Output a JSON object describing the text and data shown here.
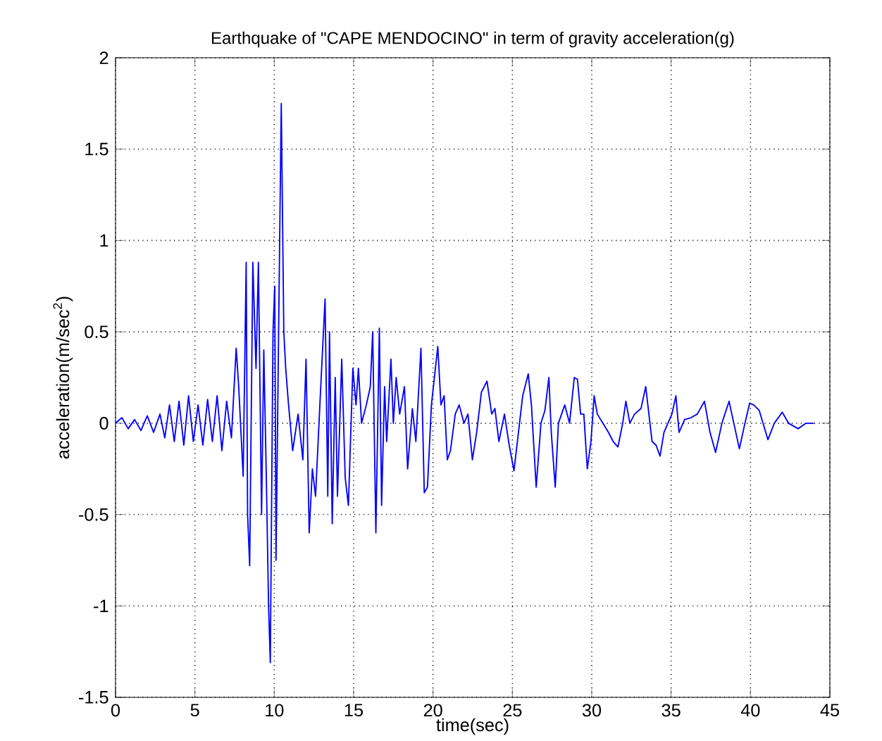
{
  "chart_data": {
    "type": "line",
    "title": "Earthquake of \"CAPE MENDOCINO\" in term of gravity acceleration(g)",
    "xlabel": "time(sec)",
    "ylabel": "acceleration(m/sec$^{2}$)",
    "grid": true,
    "line_style": "solid",
    "xlim": [
      0,
      45
    ],
    "ylim": [
      -1.5,
      2
    ],
    "xticks": [
      0,
      5,
      10,
      15,
      20,
      25,
      30,
      35,
      40,
      45
    ],
    "yticks": [
      -1.5,
      -1,
      -0.5,
      0,
      0.5,
      1,
      1.5,
      2
    ],
    "series": [
      {
        "color": "#0000ff",
        "x": [
          0,
          0.4,
          0.8,
          1.2,
          1.6,
          2.0,
          2.4,
          2.8,
          3.1,
          3.4,
          3.7,
          4.0,
          4.3,
          4.6,
          4.9,
          5.2,
          5.5,
          5.8,
          6.1,
          6.4,
          6.7,
          7.0,
          7.3,
          7.6,
          7.76,
          8.04,
          8.23,
          8.32,
          8.45,
          8.65,
          8.85,
          9.0,
          9.2,
          9.34,
          9.5,
          9.64,
          9.75,
          9.92,
          10.03,
          10.11,
          10.28,
          10.44,
          10.6,
          10.72,
          10.9,
          11.16,
          11.5,
          11.8,
          12.0,
          12.2,
          12.4,
          12.6,
          12.9,
          13.2,
          13.37,
          13.48,
          13.65,
          13.84,
          13.98,
          14.25,
          14.47,
          14.67,
          14.95,
          15.15,
          15.3,
          15.5,
          15.8,
          16.05,
          16.2,
          16.4,
          16.62,
          16.76,
          16.95,
          17.08,
          17.35,
          17.5,
          17.68,
          17.9,
          18.2,
          18.4,
          18.7,
          18.92,
          19.24,
          19.45,
          19.65,
          19.9,
          20.3,
          20.5,
          20.7,
          20.9,
          21.1,
          21.4,
          21.65,
          21.95,
          22.2,
          22.48,
          22.75,
          23.05,
          23.4,
          23.7,
          23.9,
          24.15,
          24.5,
          24.8,
          25.1,
          25.45,
          25.65,
          26.0,
          26.2,
          26.5,
          26.8,
          27.05,
          27.3,
          27.45,
          27.7,
          27.9,
          28.3,
          28.6,
          28.9,
          29.1,
          29.3,
          29.5,
          29.72,
          29.95,
          30.15,
          30.35,
          30.7,
          31.05,
          31.35,
          31.65,
          31.95,
          32.15,
          32.4,
          32.7,
          33.1,
          33.4,
          33.6,
          33.8,
          34.05,
          34.3,
          34.55,
          34.8,
          35.05,
          35.3,
          35.5,
          35.85,
          36.25,
          36.65,
          37.1,
          37.45,
          37.8,
          38.2,
          38.65,
          38.95,
          39.3,
          39.65,
          39.95,
          40.2,
          40.55,
          41.1,
          41.5,
          42.0,
          42.4,
          43.0,
          43.5,
          44.0
        ],
        "values": [
          0,
          0.03,
          -0.03,
          0.02,
          -0.04,
          0.04,
          -0.05,
          0.05,
          -0.08,
          0.1,
          -0.1,
          0.12,
          -0.12,
          0.15,
          -0.1,
          0.1,
          -0.12,
          0.13,
          -0.1,
          0.15,
          -0.15,
          0.12,
          -0.08,
          0.41,
          0.2,
          -0.29,
          0.88,
          -0.5,
          -0.78,
          0.88,
          0.3,
          0.88,
          -0.5,
          0.4,
          -0.3,
          -1.0,
          -1.31,
          0.5,
          0.75,
          -0.75,
          0.55,
          1.75,
          0.5,
          0.3,
          0.1,
          -0.15,
          0.05,
          -0.2,
          0.35,
          -0.6,
          -0.25,
          -0.4,
          0.15,
          0.68,
          -0.4,
          0.5,
          -0.55,
          0.25,
          -0.4,
          0.35,
          -0.3,
          -0.45,
          0.3,
          0.1,
          0.3,
          0.0,
          0.1,
          0.2,
          0.5,
          -0.6,
          0.52,
          -0.45,
          0.2,
          -0.1,
          0.35,
          0.0,
          0.25,
          0.05,
          0.2,
          -0.25,
          0.08,
          -0.1,
          0.41,
          -0.38,
          -0.35,
          0.1,
          0.42,
          0.1,
          0.15,
          -0.2,
          -0.15,
          0.05,
          0.1,
          0.0,
          0.05,
          -0.2,
          -0.05,
          0.17,
          0.23,
          0.05,
          0.08,
          -0.1,
          0.05,
          -0.12,
          -0.26,
          0.0,
          0.15,
          0.27,
          0.1,
          -0.35,
          0.0,
          0.07,
          0.25,
          -0.05,
          -0.35,
          0.0,
          0.1,
          0.0,
          0.25,
          0.24,
          0.05,
          0.05,
          -0.25,
          -0.1,
          0.15,
          0.05,
          0.0,
          -0.05,
          -0.1,
          -0.13,
          0.0,
          0.12,
          0.0,
          0.05,
          0.08,
          0.2,
          0.05,
          -0.1,
          -0.12,
          -0.18,
          -0.05,
          0.0,
          0.05,
          0.15,
          -0.05,
          0.02,
          0.03,
          0.05,
          0.12,
          -0.05,
          -0.16,
          0.0,
          0.12,
          0.0,
          -0.14,
          0.0,
          0.11,
          0.1,
          0.07,
          -0.09,
          0.0,
          0.06,
          0.0,
          -0.03,
          0.0,
          0.0
        ]
      }
    ]
  }
}
